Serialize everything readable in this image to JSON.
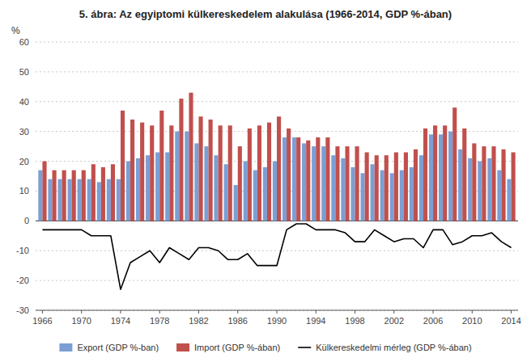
{
  "chart_data": {
    "type": "bar",
    "title": "5. ábra: Az egyiptomi külkereskedelem alakulása (1966-2014, GDP %-ában)",
    "ylabel": "%",
    "x": [
      1966,
      1967,
      1968,
      1969,
      1970,
      1971,
      1972,
      1973,
      1974,
      1975,
      1976,
      1977,
      1978,
      1979,
      1980,
      1981,
      1982,
      1983,
      1984,
      1985,
      1986,
      1987,
      1988,
      1989,
      1990,
      1991,
      1992,
      1993,
      1994,
      1995,
      1996,
      1997,
      1998,
      1999,
      2000,
      2001,
      2002,
      2003,
      2004,
      2005,
      2006,
      2007,
      2008,
      2009,
      2010,
      2011,
      2012,
      2013,
      2014
    ],
    "xlim": [
      1965.3,
      2014.7
    ],
    "xticks": [
      1966,
      1970,
      1974,
      1978,
      1982,
      1986,
      1990,
      1994,
      1998,
      2002,
      2006,
      2010,
      2014
    ],
    "ylim": [
      -30,
      60
    ],
    "yticks": [
      -30,
      -20,
      -10,
      0,
      10,
      20,
      30,
      40,
      50,
      60
    ],
    "grid": true,
    "legend": "bottom",
    "series": [
      {
        "name": "Export (GDP %-ban)",
        "type": "bar",
        "color": "#7b9fd4",
        "values": [
          17,
          14,
          14,
          14,
          14,
          14,
          13,
          14,
          14,
          20,
          21,
          22,
          23,
          23,
          30,
          30,
          26,
          25,
          22,
          19,
          12,
          20,
          17,
          18,
          20,
          28,
          28,
          26,
          25,
          25,
          22,
          21,
          18,
          16,
          19,
          17,
          16,
          17,
          18,
          22,
          29,
          29,
          30,
          24,
          21,
          20,
          21,
          17,
          14
        ]
      },
      {
        "name": "Import (GDP %-ában)",
        "type": "bar",
        "color": "#c0504d",
        "values": [
          20,
          17,
          17,
          17,
          17,
          19,
          18,
          19,
          37,
          34,
          33,
          32,
          37,
          32,
          41,
          43,
          35,
          34,
          32,
          32,
          25,
          31,
          32,
          33,
          35,
          31,
          28,
          27,
          28,
          28,
          25,
          25,
          25,
          23,
          22,
          22,
          23,
          23,
          24,
          31,
          32,
          32,
          38,
          31,
          26,
          25,
          25,
          24,
          23
        ]
      },
      {
        "name": "Külkereskedelmi mérleg (GDP %-ában)",
        "type": "line",
        "color": "#000000",
        "values": [
          -3,
          -3,
          -3,
          -3,
          -3,
          -5,
          -5,
          -5,
          -23,
          -14,
          -12,
          -10,
          -14,
          -9,
          -11,
          -13,
          -9,
          -9,
          -10,
          -13,
          -13,
          -11,
          -15,
          -15,
          -15,
          -3,
          -1,
          -1,
          -3,
          -3,
          -3,
          -4,
          -7,
          -7,
          -3,
          -5,
          -7,
          -6,
          -6,
          -9,
          -3,
          -3,
          -8,
          -7,
          -5,
          -5,
          -4,
          -7,
          -9
        ]
      }
    ]
  }
}
